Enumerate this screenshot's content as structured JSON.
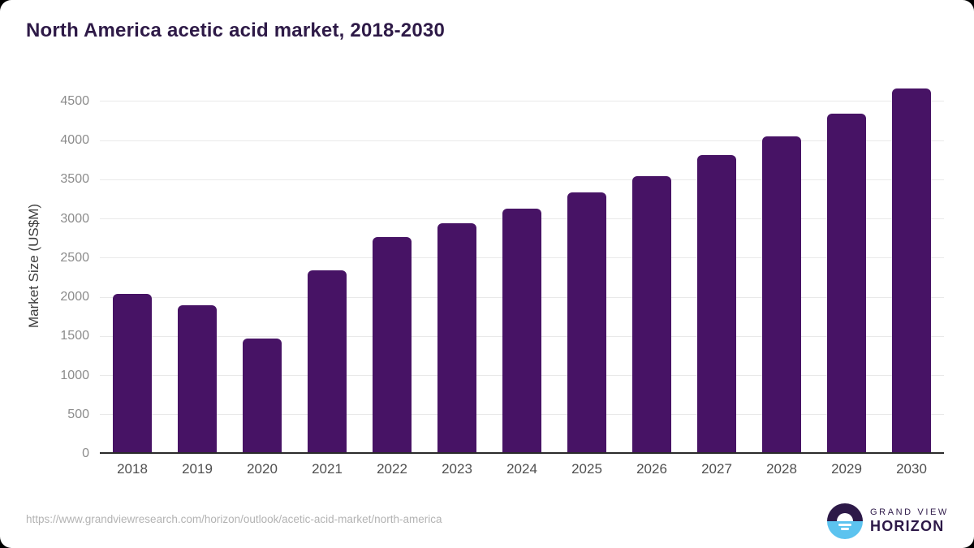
{
  "header": {
    "title": "North America acetic acid market, 2018-2030"
  },
  "chart_data": {
    "type": "bar",
    "title": "North America acetic acid market, 2018-2030",
    "categories": [
      "2018",
      "2019",
      "2020",
      "2021",
      "2022",
      "2023",
      "2024",
      "2025",
      "2026",
      "2027",
      "2028",
      "2029",
      "2030"
    ],
    "values": [
      2025,
      1875,
      1450,
      2325,
      2745,
      2925,
      3110,
      3315,
      3530,
      3790,
      4030,
      4325,
      4645
    ],
    "xlabel": "",
    "ylabel": "Market Size (US$M)",
    "ylim": [
      0,
      4800
    ],
    "yticks": [
      0,
      500,
      1000,
      1500,
      2000,
      2500,
      3000,
      3500,
      4000,
      4500
    ],
    "grid": true,
    "legend": false,
    "bar_color": "#471365"
  },
  "footer": {
    "source_url": "https://www.grandviewresearch.com/horizon/outlook/acetic-acid-market/north-america",
    "logo": {
      "top": "GRAND VIEW",
      "bottom": "HORIZON"
    }
  },
  "colors": {
    "bar": "#471365",
    "title": "#2e1a47",
    "grid": "#e9e9e9",
    "axis": "#2b2b2b",
    "ytick_text": "#8c8c8c",
    "xtick_text": "#4f4f4f",
    "url_text": "#b3b3b3",
    "logo_purple": "#2d1948",
    "logo_blue": "#5cc3ef",
    "card_bg": "#ffffff",
    "page_bg": "#000000"
  }
}
